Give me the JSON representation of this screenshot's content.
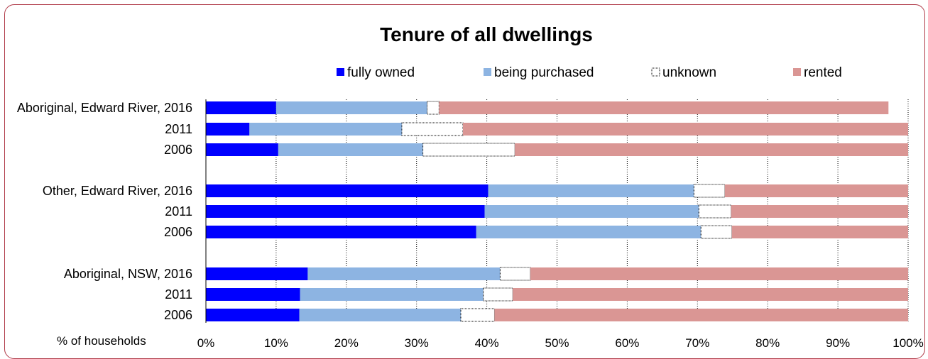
{
  "chart_data": {
    "type": "bar",
    "orientation": "horizontal",
    "stacked": true,
    "title": "Tenure of all dwellings",
    "xlabel": "% of households",
    "xlim": [
      0,
      100
    ],
    "x_ticks": [
      "0%",
      "10%",
      "20%",
      "30%",
      "40%",
      "50%",
      "60%",
      "70%",
      "80%",
      "90%",
      "100%"
    ],
    "grid": "vertical dotted",
    "legend_position": "top",
    "categories": [
      "Aboriginal, Edward River, 2016",
      "2011",
      "2006",
      "Other, Edward River, 2016",
      "2011",
      "2006",
      "Aboriginal, NSW, 2016",
      "2011",
      "2006"
    ],
    "series": [
      {
        "name": "fully owned",
        "color": "#0000ff",
        "values": [
          10.0,
          6.2,
          10.3,
          40.2,
          39.7,
          38.5,
          14.5,
          13.4,
          13.3
        ]
      },
      {
        "name": "being purchased",
        "color": "#8db4e2",
        "values": [
          21.5,
          21.7,
          20.6,
          29.3,
          30.5,
          32.0,
          27.4,
          26.1,
          23.0
        ]
      },
      {
        "name": "unknown",
        "color": "#ffffff",
        "values": [
          1.7,
          8.7,
          13.1,
          4.4,
          4.6,
          4.4,
          4.3,
          4.2,
          4.8
        ]
      },
      {
        "name": "rented",
        "color": "#da9694",
        "values": [
          64.0,
          63.4,
          56.0,
          26.1,
          25.2,
          25.1,
          53.8,
          56.3,
          58.9
        ]
      }
    ]
  }
}
